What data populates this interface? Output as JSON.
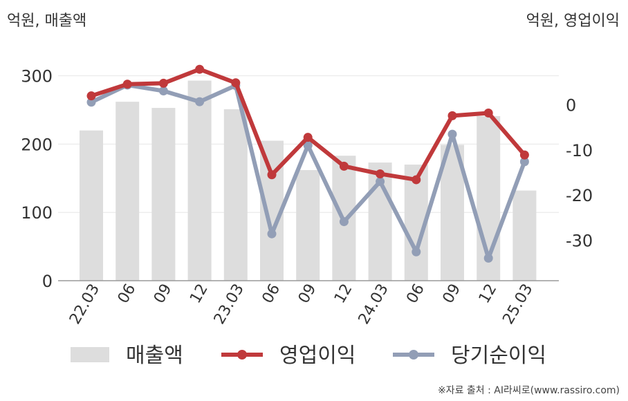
{
  "chart_data": {
    "type": "bar+line",
    "left_axis_title": "억원, 매출액",
    "right_axis_title": "억원, 영업이익",
    "categories": [
      "22.03",
      "06",
      "09",
      "12",
      "23.03",
      "06",
      "09",
      "12",
      "24.03",
      "06",
      "09",
      "12",
      "25.03"
    ],
    "left_axis": {
      "ylim": [
        0,
        330
      ],
      "ticks": [
        0,
        100,
        200,
        300
      ]
    },
    "right_axis": {
      "ylim": [
        -39,
        11
      ],
      "ticks": [
        0,
        -10,
        -20,
        -30
      ],
      "tick_labels": [
        "0",
        "-10",
        "-20",
        "-30"
      ]
    },
    "grid": true,
    "legend_position": "bottom",
    "series": [
      {
        "name": "매출액",
        "type": "bar",
        "axis": "left",
        "color": "#dddddd",
        "values": [
          220,
          262,
          253,
          293,
          251,
          205,
          162,
          183,
          173,
          170,
          199,
          241,
          132
        ]
      },
      {
        "name": "영업이익",
        "type": "line",
        "axis": "right",
        "color": "#c0393b",
        "values": [
          2.0,
          4.6,
          4.8,
          7.9,
          4.9,
          -15.5,
          -7.2,
          -13.6,
          -15.3,
          -16.6,
          -2.4,
          -1.8,
          -11.1
        ]
      },
      {
        "name": "당기순이익",
        "type": "line",
        "axis": "right",
        "color": "#929eb6",
        "values": [
          0.6,
          4.4,
          3.1,
          0.7,
          4.3,
          -28.6,
          -9.0,
          -25.9,
          -17.0,
          -32.6,
          -6.5,
          -34.0,
          -12.6
        ]
      }
    ]
  },
  "source_note": "※자료 출처 : AI라씨로(www.rassiro.com)"
}
